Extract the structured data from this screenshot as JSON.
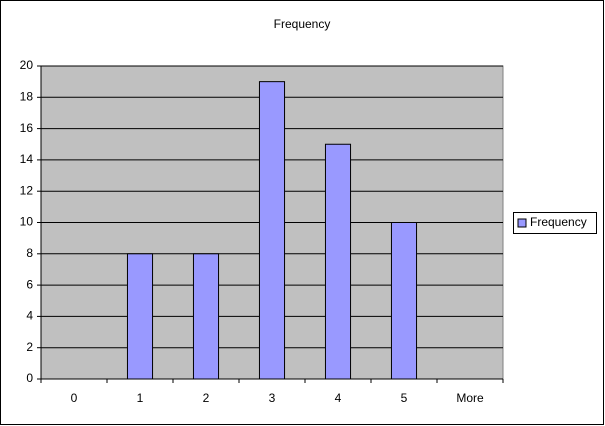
{
  "chart_data": {
    "type": "bar",
    "title": "Frequency",
    "categories": [
      "0",
      "1",
      "2",
      "3",
      "4",
      "5",
      "More"
    ],
    "series": [
      {
        "name": "Frequency",
        "color": "#9999ff",
        "values": [
          0,
          8,
          8,
          19,
          15,
          10,
          0
        ]
      }
    ],
    "ylim": [
      0,
      20
    ],
    "yticks": [
      0,
      2,
      4,
      6,
      8,
      10,
      12,
      14,
      16,
      18,
      20
    ],
    "grid": true,
    "legend": "right"
  }
}
